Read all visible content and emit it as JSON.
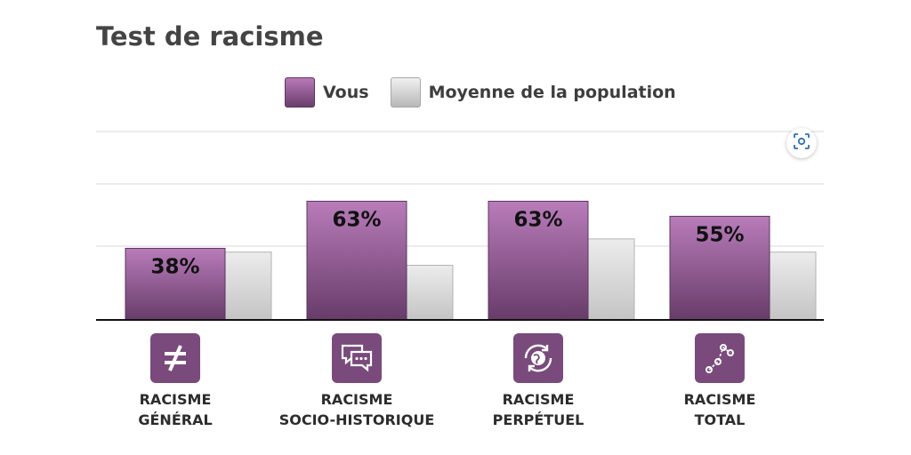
{
  "chart_data": {
    "type": "bar",
    "title": "Test de racisme",
    "categories": [
      [
        "RACISME",
        "GÉNÉRAL"
      ],
      [
        "RACISME",
        "SOCIO-HISTORIQUE"
      ],
      [
        "RACISME",
        "PERPÉTUEL"
      ],
      [
        "RACISME",
        "TOTAL"
      ]
    ],
    "series": [
      {
        "name": "Vous",
        "values": [
          38,
          63,
          63,
          55
        ],
        "labels": [
          "38%",
          "63%",
          "63%",
          "55%"
        ],
        "color": "#8a548c"
      },
      {
        "name": "Moyenne de la population",
        "values": [
          36,
          29,
          43,
          36
        ],
        "color": "#cfcfcf"
      }
    ],
    "ylim": [
      0,
      100
    ],
    "grid": true,
    "legend": "top-center",
    "icons": [
      "not-equal-icon",
      "chat-bubbles-icon",
      "globe-cycle-icon",
      "line-chart-icon"
    ]
  },
  "colors": {
    "accent": "#7a4a7c",
    "average": "#cfcfcf"
  },
  "zoom_button": {
    "icon": "zoom-icon"
  }
}
